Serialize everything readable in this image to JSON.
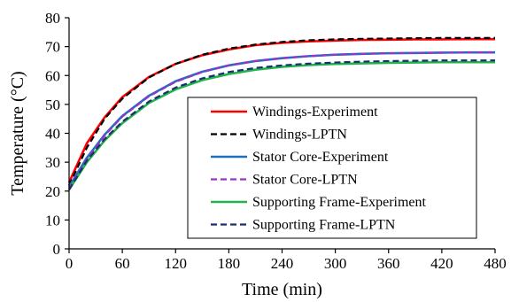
{
  "chart_data": {
    "type": "line",
    "xlabel": "Time (min)",
    "ylabel": "Temperature (°C)",
    "xlim": [
      0,
      480
    ],
    "ylim": [
      0,
      80
    ],
    "xticks": [
      0,
      60,
      120,
      180,
      240,
      300,
      360,
      420,
      480
    ],
    "yticks": [
      0,
      10,
      20,
      30,
      40,
      50,
      60,
      70,
      80
    ],
    "legend_position": "bottom-right",
    "grid": false,
    "series": [
      {
        "name": "Windings-Experiment",
        "color": "#ff0000",
        "dash": "solid",
        "x": [
          0,
          20,
          40,
          60,
          90,
          120,
          150,
          180,
          210,
          240,
          270,
          300,
          330,
          360,
          390,
          420,
          450,
          480
        ],
        "y": [
          23,
          36.5,
          45.5,
          52.5,
          59.5,
          64,
          67,
          69,
          70.5,
          71.3,
          71.8,
          72.1,
          72.3,
          72.4,
          72.5,
          72.5,
          72.6,
          72.6
        ]
      },
      {
        "name": "Windings-LPTN",
        "color": "#000000",
        "dash": "dashed",
        "x": [
          0,
          20,
          40,
          60,
          90,
          120,
          150,
          180,
          210,
          240,
          270,
          300,
          330,
          360,
          390,
          420,
          450,
          480
        ],
        "y": [
          22,
          35,
          45,
          52,
          59.3,
          64,
          67.2,
          69.3,
          70.7,
          71.6,
          72.2,
          72.5,
          72.7,
          72.8,
          72.9,
          73,
          73,
          73
        ]
      },
      {
        "name": "Stator Core-Experiment",
        "color": "#1f6fc1",
        "dash": "solid",
        "x": [
          0,
          20,
          40,
          60,
          90,
          120,
          150,
          180,
          210,
          240,
          270,
          300,
          330,
          360,
          390,
          420,
          450,
          480
        ],
        "y": [
          21.5,
          31.5,
          39.5,
          46,
          53,
          58,
          61.3,
          63.5,
          65,
          66,
          66.7,
          67.2,
          67.5,
          67.7,
          67.8,
          67.9,
          68,
          68
        ]
      },
      {
        "name": "Stator Core-LPTN",
        "color": "#9933cc",
        "dash": "dashed",
        "x": [
          0,
          20,
          40,
          60,
          90,
          120,
          150,
          180,
          210,
          240,
          270,
          300,
          330,
          360,
          390,
          420,
          450,
          480
        ],
        "y": [
          21,
          31,
          39.2,
          45.8,
          52.8,
          57.8,
          61.2,
          63.5,
          65,
          66,
          66.7,
          67.2,
          67.5,
          67.7,
          67.8,
          67.9,
          68,
          68
        ]
      },
      {
        "name": "Supporting Frame-Experiment",
        "color": "#22b34a",
        "dash": "solid",
        "x": [
          0,
          20,
          40,
          60,
          90,
          120,
          150,
          180,
          210,
          240,
          270,
          300,
          330,
          360,
          390,
          420,
          450,
          480
        ],
        "y": [
          20.5,
          30,
          37.5,
          43.5,
          50.5,
          55.2,
          58.4,
          60.5,
          62,
          63,
          63.6,
          64,
          64.2,
          64.4,
          64.5,
          64.6,
          64.6,
          64.6
        ]
      },
      {
        "name": "Supporting Frame-LPTN",
        "color": "#1a2f6e",
        "dash": "dashed",
        "x": [
          0,
          20,
          40,
          60,
          90,
          120,
          150,
          180,
          210,
          240,
          270,
          300,
          330,
          360,
          390,
          420,
          450,
          480
        ],
        "y": [
          20.5,
          30.5,
          38,
          44,
          51,
          55.8,
          59,
          61.2,
          62.6,
          63.5,
          64.1,
          64.5,
          64.8,
          65,
          65.1,
          65.2,
          65.2,
          65.2
        ]
      }
    ]
  }
}
